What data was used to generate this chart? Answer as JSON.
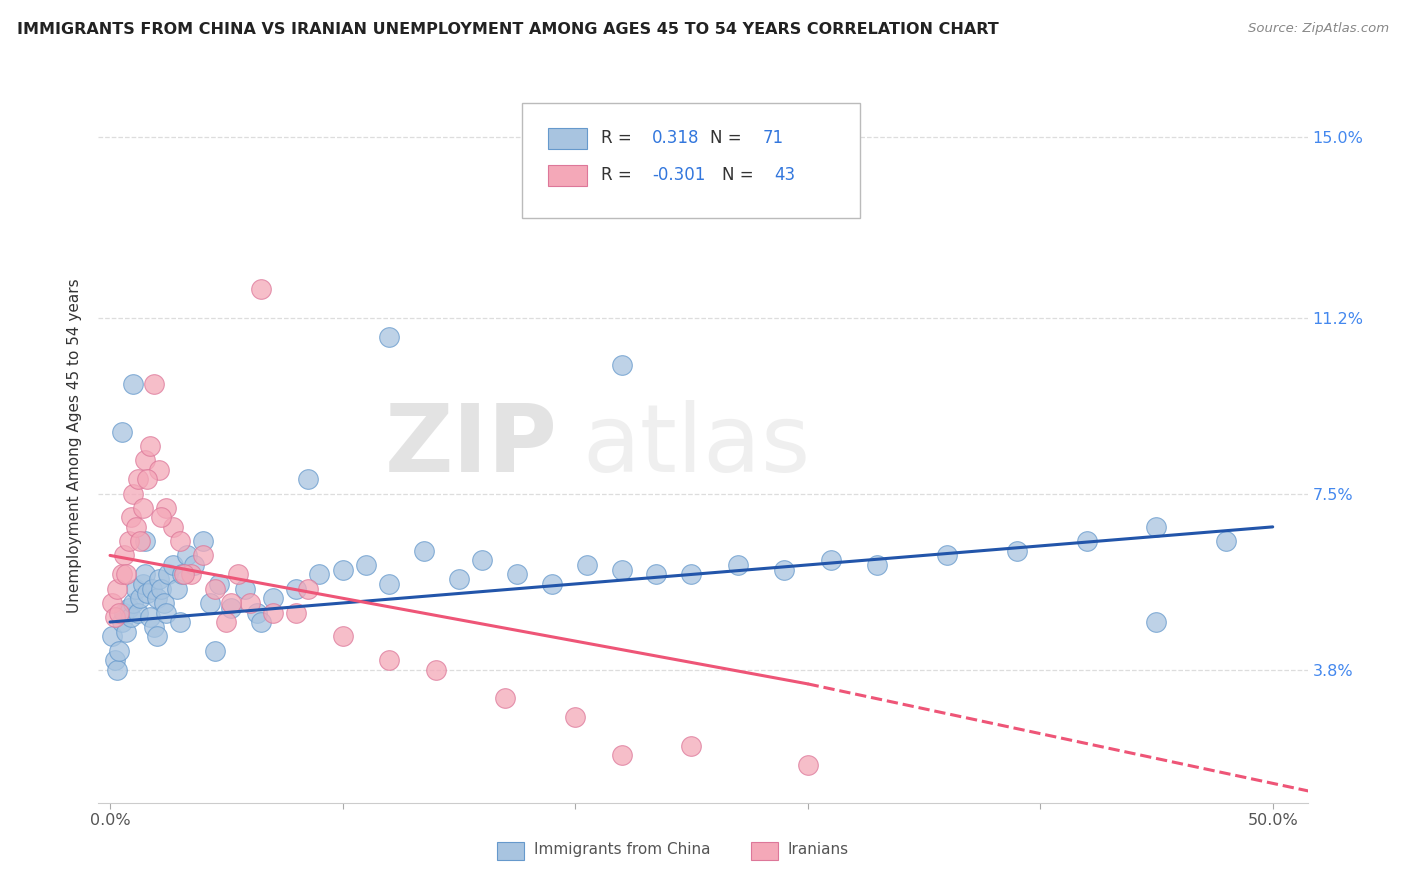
{
  "title": "IMMIGRANTS FROM CHINA VS IRANIAN UNEMPLOYMENT AMONG AGES 45 TO 54 YEARS CORRELATION CHART",
  "source_text": "Source: ZipAtlas.com",
  "ylabel": "Unemployment Among Ages 45 to 54 years",
  "legend_china": "Immigrants from China",
  "legend_iran": "Iranians",
  "r_china": "0.318",
  "n_china": "71",
  "r_iran": "-0.301",
  "n_iran": "43",
  "blue_color": "#A8C4E0",
  "pink_color": "#F4A8B8",
  "blue_line_color": "#2255AA",
  "pink_line_color": "#EE5577",
  "y_ticks": [
    3.8,
    7.5,
    11.2,
    15.0
  ],
  "x_min": 0.0,
  "x_max": 50.0,
  "y_min": 1.0,
  "y_max": 16.0,
  "china_x": [
    0.1,
    0.2,
    0.3,
    0.4,
    0.5,
    0.6,
    0.7,
    0.8,
    0.9,
    1.0,
    1.1,
    1.2,
    1.3,
    1.4,
    1.5,
    1.6,
    1.7,
    1.8,
    1.9,
    2.0,
    2.1,
    2.2,
    2.3,
    2.4,
    2.5,
    2.7,
    2.9,
    3.1,
    3.3,
    3.6,
    4.0,
    4.3,
    4.7,
    5.2,
    5.8,
    6.3,
    7.0,
    8.0,
    9.0,
    10.0,
    11.0,
    12.0,
    13.5,
    15.0,
    16.0,
    17.5,
    19.0,
    20.5,
    22.0,
    23.5,
    25.0,
    27.0,
    29.0,
    31.0,
    33.0,
    36.0,
    39.0,
    42.0,
    45.0,
    48.0,
    0.5,
    1.0,
    1.5,
    2.0,
    3.0,
    4.5,
    6.5,
    8.5,
    12.0,
    22.0,
    45.0
  ],
  "china_y": [
    4.5,
    4.0,
    3.8,
    4.2,
    4.8,
    5.0,
    4.6,
    5.1,
    4.9,
    5.2,
    5.5,
    5.0,
    5.3,
    5.6,
    5.8,
    5.4,
    4.9,
    5.5,
    4.7,
    5.3,
    5.7,
    5.5,
    5.2,
    5.0,
    5.8,
    6.0,
    5.5,
    5.8,
    6.2,
    6.0,
    6.5,
    5.2,
    5.6,
    5.1,
    5.5,
    5.0,
    5.3,
    5.5,
    5.8,
    5.9,
    6.0,
    5.6,
    6.3,
    5.7,
    6.1,
    5.8,
    5.6,
    6.0,
    5.9,
    5.8,
    5.8,
    6.0,
    5.9,
    6.1,
    6.0,
    6.2,
    6.3,
    6.5,
    4.8,
    6.5,
    8.8,
    9.8,
    6.5,
    4.5,
    4.8,
    4.2,
    4.8,
    7.8,
    10.8,
    10.2,
    6.8
  ],
  "iran_x": [
    0.1,
    0.2,
    0.3,
    0.4,
    0.5,
    0.6,
    0.7,
    0.8,
    0.9,
    1.0,
    1.1,
    1.2,
    1.3,
    1.5,
    1.7,
    1.9,
    2.1,
    2.4,
    2.7,
    3.0,
    3.5,
    4.0,
    4.5,
    5.0,
    5.5,
    6.0,
    7.0,
    8.5,
    10.0,
    12.0,
    14.0,
    17.0,
    20.0,
    25.0,
    30.0,
    1.4,
    1.6,
    2.2,
    3.2,
    6.5,
    22.0,
    8.0,
    5.2
  ],
  "iran_y": [
    5.2,
    4.9,
    5.5,
    5.0,
    5.8,
    6.2,
    5.8,
    6.5,
    7.0,
    7.5,
    6.8,
    7.8,
    6.5,
    8.2,
    8.5,
    9.8,
    8.0,
    7.2,
    6.8,
    6.5,
    5.8,
    6.2,
    5.5,
    4.8,
    5.8,
    5.2,
    5.0,
    5.5,
    4.5,
    4.0,
    3.8,
    3.2,
    2.8,
    2.2,
    1.8,
    7.2,
    7.8,
    7.0,
    5.8,
    11.8,
    2.0,
    5.0,
    5.2
  ],
  "watermark_zip": "ZIP",
  "watermark_atlas": "atlas"
}
